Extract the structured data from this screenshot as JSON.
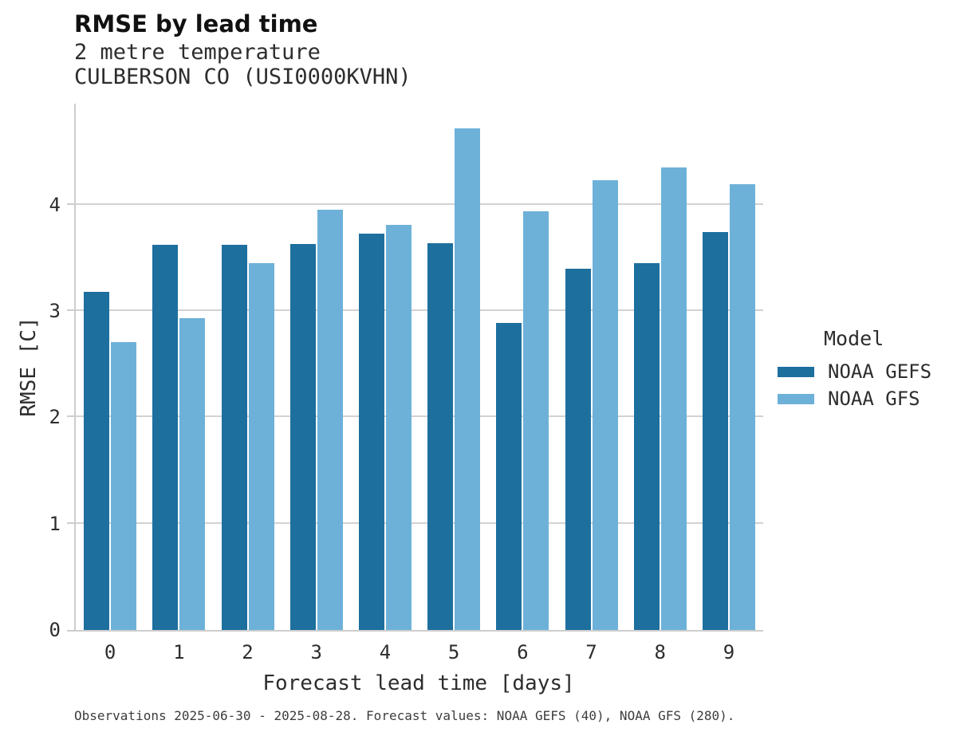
{
  "header": {
    "title": "RMSE by lead time",
    "subtitle1": "2 metre temperature",
    "subtitle2": "CULBERSON CO (USI0000KVHN)"
  },
  "legend": {
    "title": "Model",
    "items": [
      {
        "label": "NOAA GEFS",
        "color": "#1d6f9e"
      },
      {
        "label": "NOAA GFS",
        "color": "#6db1d9"
      }
    ]
  },
  "footnote": "Observations 2025-06-30 - 2025-08-28. Forecast values: NOAA GEFS (40), NOAA GFS (280).",
  "colors": {
    "spine": "#cdcdcd",
    "gridline": "#d2d2d2",
    "text": "#2d2d2d",
    "title_text": "#111111"
  },
  "chart_data": {
    "type": "bar",
    "title": "RMSE by lead time",
    "subtitle": [
      "2 metre temperature",
      "CULBERSON CO (USI0000KVHN)"
    ],
    "categories": [
      "0",
      "1",
      "2",
      "3",
      "4",
      "5",
      "6",
      "7",
      "8",
      "9"
    ],
    "series": [
      {
        "name": "NOAA GEFS",
        "color": "#1d6f9e",
        "values": [
          3.18,
          3.62,
          3.62,
          3.63,
          3.73,
          3.64,
          2.89,
          3.4,
          3.45,
          3.74
        ]
      },
      {
        "name": "NOAA GFS",
        "color": "#6db1d9",
        "values": [
          2.71,
          2.93,
          3.45,
          3.95,
          3.81,
          4.72,
          3.94,
          4.23,
          4.35,
          4.19
        ]
      }
    ],
    "xlabel": "Forecast lead time [days]",
    "ylabel": "RMSE [C]",
    "ylim": [
      0,
      4.95
    ],
    "yticks": [
      0,
      1,
      2,
      3,
      4
    ],
    "grid": "horizontal",
    "legend_position": "right",
    "legend_title": "Model"
  }
}
